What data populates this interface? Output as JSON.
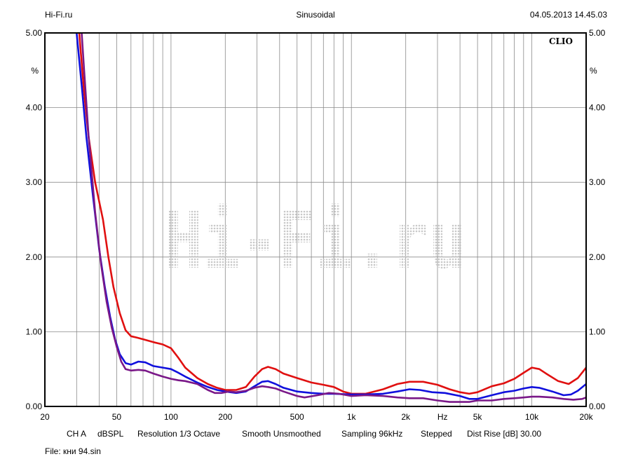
{
  "header": {
    "left": "Hi-Fi.ru",
    "center": "Sinusoidal",
    "right": "04.05.2013 14.45.03"
  },
  "brand": "CLIO",
  "watermark": "Hi-Fi.ru",
  "footer": {
    "channel": "CH A",
    "unit": "dBSPL",
    "resolution": "Resolution 1/3 Octave",
    "smooth": "Smooth Unsmoothed",
    "sampling": "Sampling 96kHz",
    "mode": "Stepped",
    "dist_rise": "Dist Rise [dB] 30.00"
  },
  "file_label": "File: кни 94.sin",
  "chart_data": {
    "type": "line",
    "x_scale": "log",
    "xlim": [
      20,
      20000
    ],
    "ylim": [
      0,
      5
    ],
    "x_unit_label": "Hz",
    "y_unit_label": "%",
    "x_ticks": [
      {
        "value": 20,
        "label": "20"
      },
      {
        "value": 50,
        "label": "50"
      },
      {
        "value": 100,
        "label": "100"
      },
      {
        "value": 200,
        "label": "200"
      },
      {
        "value": 500,
        "label": "500"
      },
      {
        "value": 1000,
        "label": "1k"
      },
      {
        "value": 2000,
        "label": "2k"
      },
      {
        "value": 5000,
        "label": "5k"
      },
      {
        "value": 10000,
        "label": "10k"
      },
      {
        "value": 20000,
        "label": "20k"
      }
    ],
    "y_ticks": [
      {
        "value": 0,
        "label": "0.00"
      },
      {
        "value": 1,
        "label": "1.00"
      },
      {
        "value": 2,
        "label": "2.00"
      },
      {
        "value": 3,
        "label": "3.00"
      },
      {
        "value": 4,
        "label": "4.00"
      },
      {
        "value": 5,
        "label": "5.00"
      }
    ],
    "grid": true,
    "series": [
      {
        "color": "#e01010",
        "points": [
          [
            31,
            5.0
          ],
          [
            33,
            4.2
          ],
          [
            35,
            3.6
          ],
          [
            38,
            3.0
          ],
          [
            42,
            2.5
          ],
          [
            45,
            2.0
          ],
          [
            48,
            1.6
          ],
          [
            52,
            1.25
          ],
          [
            56,
            1.02
          ],
          [
            60,
            0.94
          ],
          [
            65,
            0.92
          ],
          [
            70,
            0.9
          ],
          [
            80,
            0.86
          ],
          [
            90,
            0.83
          ],
          [
            100,
            0.78
          ],
          [
            110,
            0.65
          ],
          [
            120,
            0.52
          ],
          [
            140,
            0.38
          ],
          [
            160,
            0.3
          ],
          [
            180,
            0.25
          ],
          [
            200,
            0.22
          ],
          [
            230,
            0.22
          ],
          [
            260,
            0.26
          ],
          [
            290,
            0.4
          ],
          [
            320,
            0.5
          ],
          [
            345,
            0.53
          ],
          [
            380,
            0.5
          ],
          [
            420,
            0.44
          ],
          [
            500,
            0.38
          ],
          [
            600,
            0.32
          ],
          [
            700,
            0.29
          ],
          [
            800,
            0.26
          ],
          [
            900,
            0.2
          ],
          [
            1000,
            0.17
          ],
          [
            1200,
            0.17
          ],
          [
            1500,
            0.23
          ],
          [
            1800,
            0.3
          ],
          [
            2100,
            0.33
          ],
          [
            2500,
            0.33
          ],
          [
            3000,
            0.29
          ],
          [
            3500,
            0.23
          ],
          [
            4000,
            0.19
          ],
          [
            4500,
            0.17
          ],
          [
            5000,
            0.19
          ],
          [
            6000,
            0.27
          ],
          [
            7000,
            0.31
          ],
          [
            8000,
            0.37
          ],
          [
            9000,
            0.45
          ],
          [
            10000,
            0.52
          ],
          [
            11000,
            0.5
          ],
          [
            12000,
            0.44
          ],
          [
            14000,
            0.34
          ],
          [
            16000,
            0.3
          ],
          [
            18000,
            0.38
          ],
          [
            20000,
            0.52
          ]
        ]
      },
      {
        "color": "#1010dd",
        "points": [
          [
            30,
            5.0
          ],
          [
            32,
            4.3
          ],
          [
            34,
            3.6
          ],
          [
            37,
            2.8
          ],
          [
            40,
            2.1
          ],
          [
            43,
            1.6
          ],
          [
            46,
            1.2
          ],
          [
            49,
            0.9
          ],
          [
            52,
            0.7
          ],
          [
            56,
            0.58
          ],
          [
            60,
            0.56
          ],
          [
            66,
            0.6
          ],
          [
            72,
            0.59
          ],
          [
            80,
            0.54
          ],
          [
            90,
            0.52
          ],
          [
            100,
            0.5
          ],
          [
            110,
            0.45
          ],
          [
            120,
            0.4
          ],
          [
            140,
            0.32
          ],
          [
            160,
            0.26
          ],
          [
            180,
            0.22
          ],
          [
            200,
            0.2
          ],
          [
            230,
            0.18
          ],
          [
            260,
            0.2
          ],
          [
            290,
            0.27
          ],
          [
            320,
            0.33
          ],
          [
            345,
            0.34
          ],
          [
            380,
            0.3
          ],
          [
            420,
            0.25
          ],
          [
            500,
            0.2
          ],
          [
            600,
            0.18
          ],
          [
            700,
            0.17
          ],
          [
            800,
            0.17
          ],
          [
            1000,
            0.16
          ],
          [
            1200,
            0.16
          ],
          [
            1500,
            0.17
          ],
          [
            1800,
            0.2
          ],
          [
            2100,
            0.23
          ],
          [
            2400,
            0.22
          ],
          [
            2800,
            0.19
          ],
          [
            3300,
            0.18
          ],
          [
            4000,
            0.14
          ],
          [
            4500,
            0.1
          ],
          [
            5000,
            0.1
          ],
          [
            6000,
            0.15
          ],
          [
            7000,
            0.19
          ],
          [
            8000,
            0.21
          ],
          [
            9000,
            0.24
          ],
          [
            10000,
            0.26
          ],
          [
            11000,
            0.25
          ],
          [
            13000,
            0.2
          ],
          [
            15000,
            0.15
          ],
          [
            16500,
            0.16
          ],
          [
            18000,
            0.21
          ],
          [
            20000,
            0.3
          ]
        ]
      },
      {
        "color": "#7a1888",
        "points": [
          [
            32,
            5.0
          ],
          [
            33,
            4.5
          ],
          [
            35,
            3.6
          ],
          [
            38,
            2.6
          ],
          [
            41,
            1.9
          ],
          [
            44,
            1.4
          ],
          [
            47,
            1.05
          ],
          [
            50,
            0.8
          ],
          [
            53,
            0.6
          ],
          [
            56,
            0.5
          ],
          [
            60,
            0.48
          ],
          [
            66,
            0.49
          ],
          [
            72,
            0.48
          ],
          [
            80,
            0.44
          ],
          [
            90,
            0.4
          ],
          [
            100,
            0.37
          ],
          [
            110,
            0.35
          ],
          [
            120,
            0.34
          ],
          [
            140,
            0.3
          ],
          [
            160,
            0.22
          ],
          [
            175,
            0.18
          ],
          [
            190,
            0.18
          ],
          [
            210,
            0.2
          ],
          [
            230,
            0.19
          ],
          [
            260,
            0.21
          ],
          [
            290,
            0.25
          ],
          [
            320,
            0.27
          ],
          [
            345,
            0.26
          ],
          [
            380,
            0.24
          ],
          [
            420,
            0.2
          ],
          [
            500,
            0.14
          ],
          [
            550,
            0.12
          ],
          [
            650,
            0.15
          ],
          [
            750,
            0.18
          ],
          [
            850,
            0.17
          ],
          [
            1000,
            0.14
          ],
          [
            1200,
            0.15
          ],
          [
            1500,
            0.14
          ],
          [
            1800,
            0.12
          ],
          [
            2100,
            0.11
          ],
          [
            2500,
            0.11
          ],
          [
            3000,
            0.08
          ],
          [
            3500,
            0.06
          ],
          [
            4000,
            0.06
          ],
          [
            4500,
            0.06
          ],
          [
            5000,
            0.08
          ],
          [
            6000,
            0.08
          ],
          [
            7000,
            0.1
          ],
          [
            8000,
            0.11
          ],
          [
            9000,
            0.12
          ],
          [
            10000,
            0.13
          ],
          [
            11000,
            0.13
          ],
          [
            13000,
            0.12
          ],
          [
            15000,
            0.1
          ],
          [
            17000,
            0.09
          ],
          [
            19000,
            0.1
          ],
          [
            20000,
            0.12
          ]
        ]
      }
    ]
  }
}
